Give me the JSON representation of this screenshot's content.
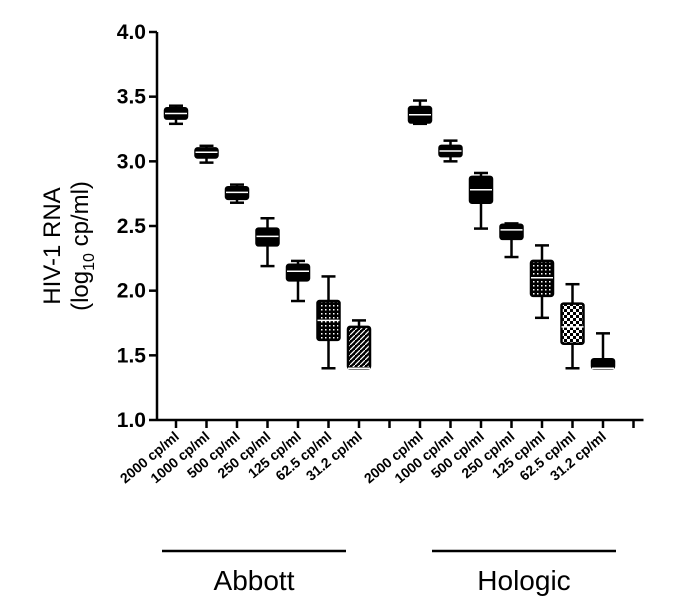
{
  "chart_data": {
    "type": "box",
    "ylabel_line1": "HIV-1 RNA",
    "ylabel_line2_prefix": "(log",
    "ylabel_line2_sub": "10",
    "ylabel_line2_suffix": " cp/ml)",
    "ylim": [
      1.0,
      4.0
    ],
    "yticks": [
      "1.0",
      "1.5",
      "2.0",
      "2.5",
      "3.0",
      "3.5",
      "4.0"
    ],
    "grid": false,
    "groups": [
      {
        "name": "Abbott",
        "categories": [
          {
            "label": "2000 cp/ml",
            "min": 3.29,
            "q1": 3.33,
            "median": 3.37,
            "q3": 3.41,
            "max": 3.43
          },
          {
            "label": "1000 cp/ml",
            "min": 2.99,
            "q1": 3.03,
            "median": 3.07,
            "q3": 3.1,
            "max": 3.12
          },
          {
            "label": "500 cp/ml",
            "min": 2.68,
            "q1": 2.71,
            "median": 2.76,
            "q3": 2.8,
            "max": 2.82
          },
          {
            "label": "250 cp/ml",
            "min": 2.19,
            "q1": 2.35,
            "median": 2.42,
            "q3": 2.48,
            "max": 2.56
          },
          {
            "label": "125 cp/ml",
            "min": 1.92,
            "q1": 2.08,
            "median": 2.15,
            "q3": 2.2,
            "max": 2.23
          },
          {
            "label": "62.5 cp/ml",
            "min": 1.4,
            "q1": 1.62,
            "median": 1.77,
            "q3": 1.92,
            "max": 2.11
          },
          {
            "label": "31.2 cp/ml",
            "min": 1.4,
            "q1": 1.4,
            "median": 1.4,
            "q3": 1.72,
            "max": 1.77
          }
        ]
      },
      {
        "name": "Hologic",
        "categories": [
          {
            "label": "2000 cp/ml",
            "min": 3.29,
            "q1": 3.3,
            "median": 3.36,
            "q3": 3.42,
            "max": 3.47
          },
          {
            "label": "1000 cp/ml",
            "min": 3.0,
            "q1": 3.04,
            "median": 3.08,
            "q3": 3.12,
            "max": 3.16
          },
          {
            "label": "500 cp/ml",
            "min": 2.48,
            "q1": 2.68,
            "median": 2.78,
            "q3": 2.88,
            "max": 2.91
          },
          {
            "label": "250 cp/ml",
            "min": 2.26,
            "q1": 2.4,
            "median": 2.47,
            "q3": 2.51,
            "max": 2.52
          },
          {
            "label": "125 cp/ml",
            "min": 1.79,
            "q1": 1.96,
            "median": 2.1,
            "q3": 2.23,
            "max": 2.35
          },
          {
            "label": "62.5 cp/ml",
            "min": 1.4,
            "q1": 1.59,
            "median": 1.72,
            "q3": 1.9,
            "max": 2.05
          },
          {
            "label": "31.2 cp/ml",
            "min": 1.4,
            "q1": 1.4,
            "median": 1.4,
            "q3": 1.47,
            "max": 1.67
          }
        ]
      }
    ]
  }
}
